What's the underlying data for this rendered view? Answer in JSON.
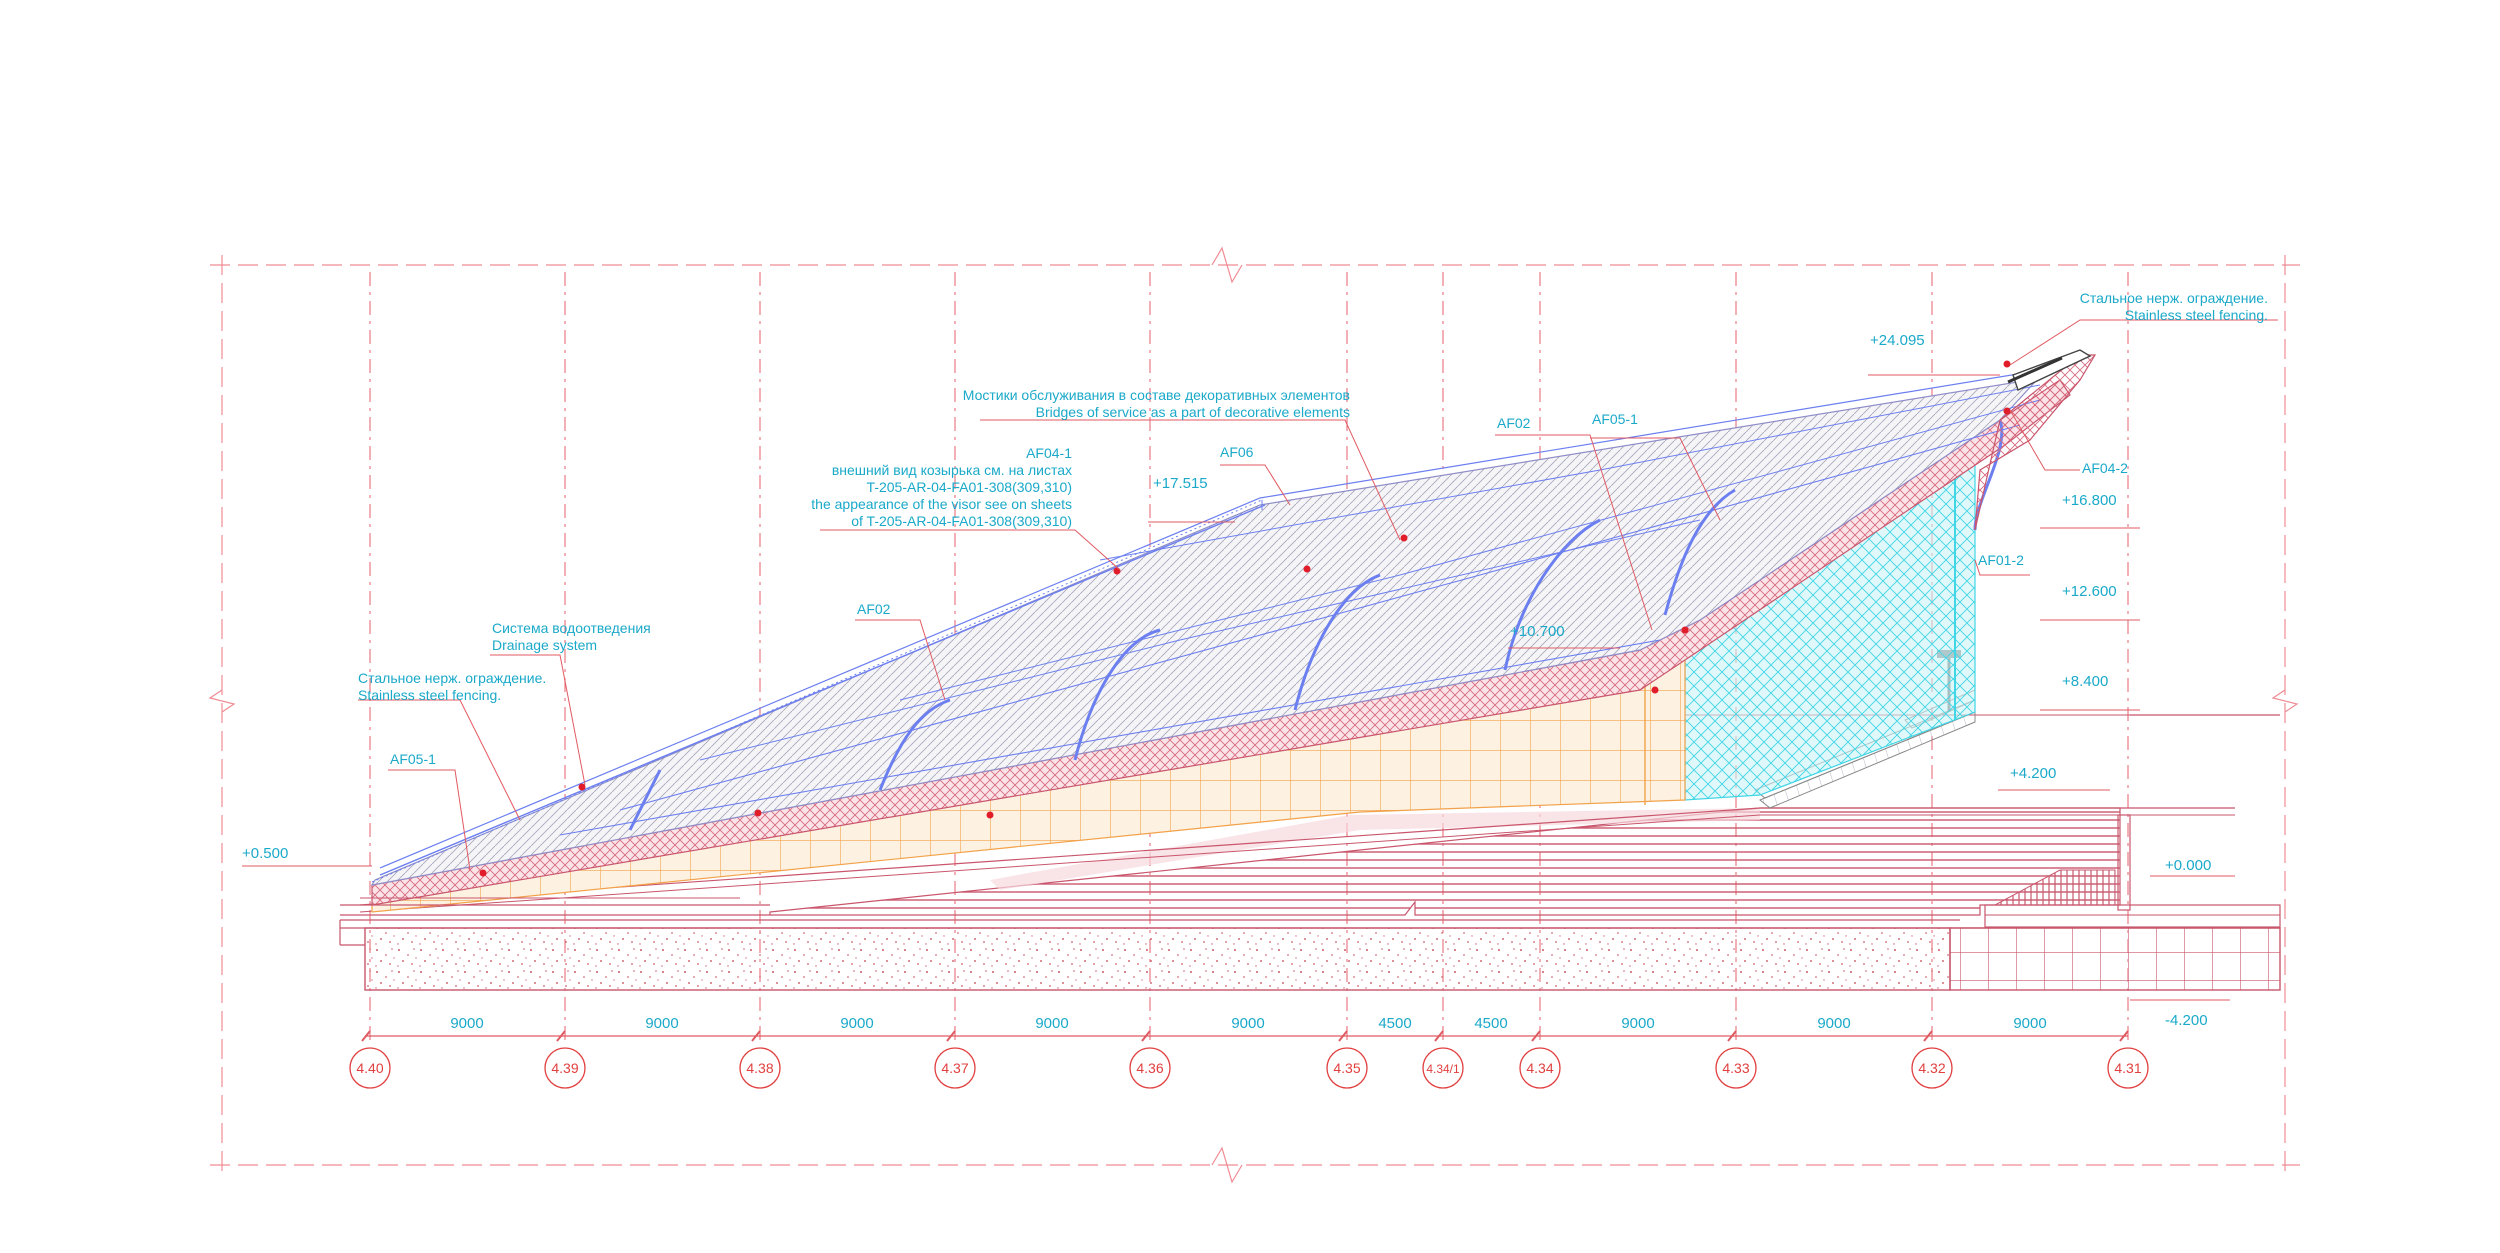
{
  "colors": {
    "annotation": "#1aa9c9",
    "axis": "#e0403f",
    "roof_lines": "#8e8ec8",
    "truss": "#6c7ff0",
    "stand": "#c9566c",
    "orange_grid": "#f2a24a",
    "glass": "#3fd6e6"
  },
  "annotations": {
    "fencing_top_ru": "Стальное нерж. ограждение.",
    "fencing_top_en": "Stainless steel fencing.",
    "bridges_ru": "Мостики обслуживания в составе декоративных элементов",
    "bridges_en": "Bridges of service as a part of decorative elements",
    "af04_1_title": "AF04-1",
    "af04_1_line1": "внешний вид козырька см. на листах",
    "af04_1_line2": "T-205-AR-04-FA01-308(309,310)",
    "af04_1_line3": "the appearance of the visor see on sheets",
    "af04_1_line4": "of T-205-AR-04-FA01-308(309,310)",
    "af06": "AF06",
    "af02_top": "AF02",
    "af05_1_top": "AF05-1",
    "af04_2": "AF04-2",
    "af01_2": "AF01-2",
    "af02_mid": "AF02",
    "drainage_ru": "Система водоотведения",
    "drainage_en": "Drainage system",
    "fencing_left_ru": "Стальное нерж. ограждение.",
    "fencing_left_en": "Stainless steel fencing.",
    "af05_1_left": "AF05-1"
  },
  "levels": {
    "l24095": "+24.095",
    "l17515": "+17.515",
    "l16800": "+16.800",
    "l12600": "+12.600",
    "l10700": "+10.700",
    "l8400": "+8.400",
    "l4200": "+4.200",
    "l0500": "+0.500",
    "l0000": "+0.000",
    "lm4200": "-4.200"
  },
  "dimensions": [
    "9000",
    "9000",
    "9000",
    "9000",
    "9000",
    "4500",
    "4500",
    "9000",
    "9000",
    "9000"
  ],
  "axes": [
    "4.40",
    "4.39",
    "4.38",
    "4.37",
    "4.36",
    "4.35",
    "4.34/1",
    "4.34",
    "4.33",
    "4.32",
    "4.31"
  ]
}
